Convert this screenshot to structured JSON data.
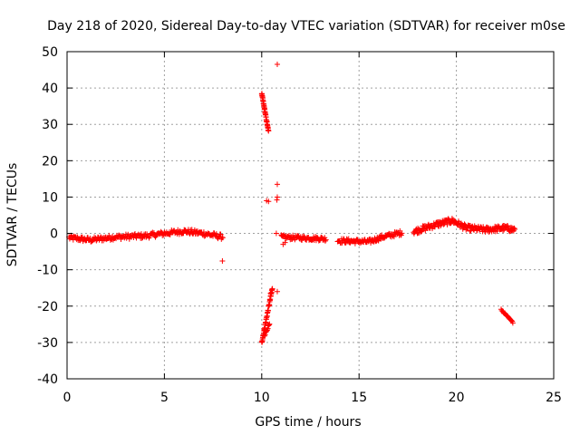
{
  "chart_data": {
    "type": "scatter",
    "title": "Day 218 of 2020, Sidereal Day-to-day VTEC variation (SDTVAR) for receiver m0se",
    "xlabel": "GPS time / hours",
    "ylabel": "SDTVAR / TECUs",
    "xlim": [
      0,
      25
    ],
    "ylim": [
      -40,
      50
    ],
    "xticks": [
      0,
      5,
      10,
      15,
      20,
      25
    ],
    "yticks": [
      -40,
      -30,
      -20,
      -10,
      0,
      10,
      20,
      30,
      40,
      50
    ],
    "grid": true,
    "marker": "+",
    "color": "#ff0000",
    "series": [
      {
        "name": "SDTVAR",
        "segments": [
          {
            "x": [
              0.1,
              8.0
            ],
            "y": [
              -1.2,
              -1.0
            ],
            "points": 220,
            "spread": 1.4,
            "shape": [
              [
                0.1,
                -1.2
              ],
              [
                1.2,
                -1.8
              ],
              [
                2.5,
                -1.0
              ],
              [
                4.0,
                -0.7
              ],
              [
                5.0,
                0.0
              ],
              [
                6.0,
                0.6
              ],
              [
                7.0,
                0.0
              ],
              [
                8.0,
                -1.0
              ]
            ]
          },
          {
            "x": [
              10.0,
              10.35
            ],
            "y": [
              38.5,
              28.0
            ],
            "points": 40,
            "spread": 0.6
          },
          {
            "x": [
              10.0,
              10.55
            ],
            "y": [
              -30.0,
              -15.0
            ],
            "points": 50,
            "spread": 1.0
          },
          {
            "x": [
              10.15,
              10.4
            ],
            "y": [
              -28.0,
              -25.0
            ],
            "points": 10,
            "spread": 0.5
          },
          {
            "x": [
              11.0,
              13.3
            ],
            "y": [
              -1.0,
              -1.5
            ],
            "points": 70,
            "spread": 1.2
          },
          {
            "x": [
              13.9,
              17.2
            ],
            "y": [
              -2.0,
              0.0
            ],
            "points": 100,
            "spread": 1.3,
            "shape": [
              [
                13.9,
                -2.0
              ],
              [
                15.5,
                -2.3
              ],
              [
                16.2,
                -1.0
              ],
              [
                17.2,
                0.2
              ]
            ]
          },
          {
            "x": [
              17.8,
              23.0
            ],
            "y": [
              0.0,
              1.0
            ],
            "points": 190,
            "spread": 1.6,
            "shape": [
              [
                17.8,
                0.5
              ],
              [
                19.0,
                2.5
              ],
              [
                19.8,
                3.5
              ],
              [
                20.5,
                1.5
              ],
              [
                21.5,
                1.0
              ],
              [
                22.5,
                1.5
              ],
              [
                23.0,
                1.0
              ]
            ]
          },
          {
            "x": [
              22.3,
              22.9
            ],
            "y": [
              -21.0,
              -24.5
            ],
            "points": 20,
            "spread": 0.3
          }
        ],
        "points": [
          [
            7.98,
            -7.6
          ],
          [
            10.8,
            46.5
          ],
          [
            10.8,
            13.5
          ],
          [
            10.8,
            10.0
          ],
          [
            10.78,
            9.2
          ],
          [
            10.25,
            9.0
          ],
          [
            10.35,
            8.8
          ],
          [
            10.75,
            0.0
          ],
          [
            10.8,
            -16.0
          ],
          [
            10.45,
            -16.5
          ],
          [
            11.1,
            -3.0
          ],
          [
            11.2,
            -2.5
          ]
        ]
      }
    ]
  }
}
